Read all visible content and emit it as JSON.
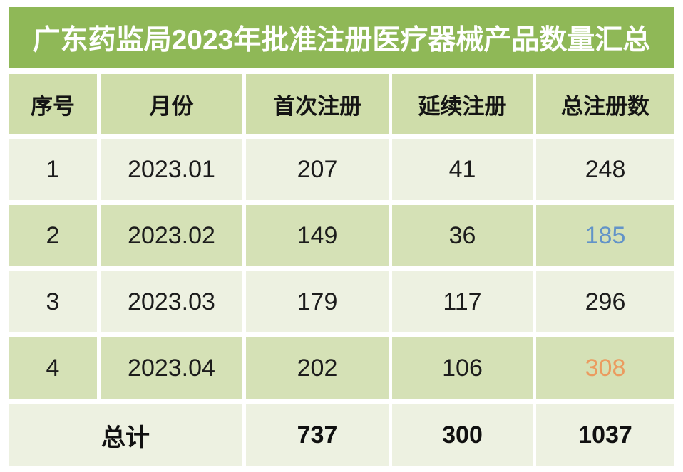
{
  "banner": {
    "title": "广东药监局2023年批准注册医疗器械产品数量汇总"
  },
  "table": {
    "headers": {
      "no": "序号",
      "month": "月份",
      "first_reg": "首次注册",
      "renewal_reg": "延续注册",
      "total_reg": "总注册数"
    },
    "rows": [
      {
        "no": "1",
        "month": "2023.01",
        "first_reg": "207",
        "renewal_reg": "41",
        "total_reg": "248"
      },
      {
        "no": "2",
        "month": "2023.02",
        "first_reg": "149",
        "renewal_reg": "36",
        "total_reg": "185"
      },
      {
        "no": "3",
        "month": "2023.03",
        "first_reg": "179",
        "renewal_reg": "117",
        "total_reg": "296"
      },
      {
        "no": "4",
        "month": "2023.04",
        "first_reg": "202",
        "renewal_reg": "106",
        "total_reg": "308"
      }
    ],
    "footer": {
      "label": "总计",
      "first_reg": "737",
      "renewal_reg": "300",
      "total_reg": "1037"
    }
  },
  "colors": {
    "banner_green": "#8FB857",
    "header_bg": "#CFDDAA",
    "row_light": "#EDF1E1",
    "row_green": "#D5E1B6",
    "highlight_blue": "#6293C8",
    "highlight_orange": "#EB9B5F"
  },
  "chart_data": {
    "type": "table",
    "title": "广东药监局2023年批准注册医疗器械产品数量汇总",
    "columns": [
      "序号",
      "月份",
      "首次注册",
      "延续注册",
      "总注册数"
    ],
    "rows": [
      [
        "1",
        "2023.01",
        207,
        41,
        248
      ],
      [
        "2",
        "2023.02",
        149,
        36,
        185
      ],
      [
        "3",
        "2023.03",
        179,
        117,
        296
      ],
      [
        "4",
        "2023.04",
        202,
        106,
        308
      ],
      [
        "总计",
        "",
        737,
        300,
        1037
      ]
    ],
    "highlights": [
      {
        "row": 1,
        "column": "总注册数",
        "value": 185,
        "color": "#6293C8"
      },
      {
        "row": 3,
        "column": "总注册数",
        "value": 308,
        "color": "#EB9B5F"
      }
    ],
    "layout": {
      "striped_rows": true,
      "merged_footer_label_cells": 2,
      "grid_gap_color": "#ffffff"
    }
  }
}
